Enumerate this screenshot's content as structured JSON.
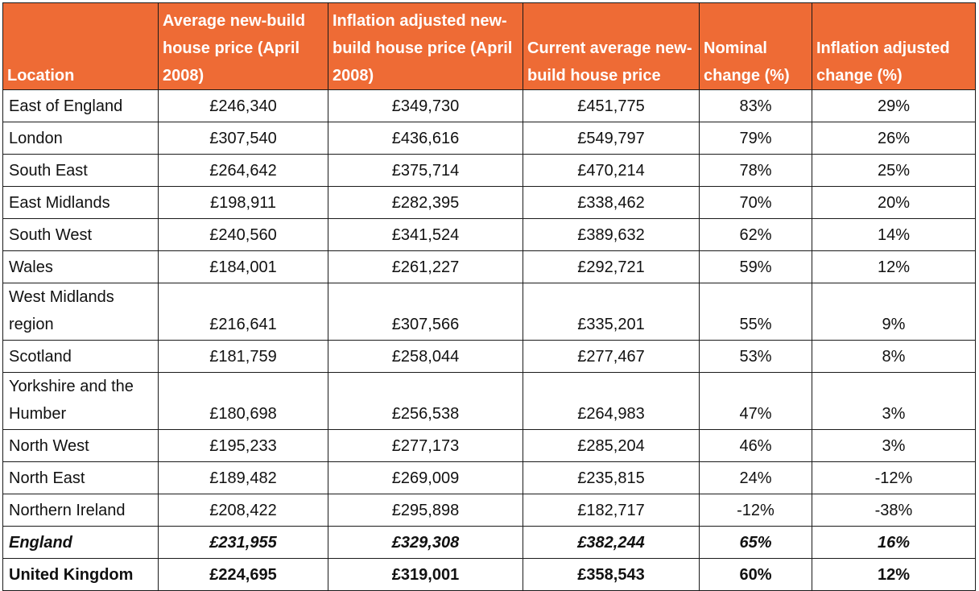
{
  "table": {
    "headers": [
      "Location",
      "Average new-build house price (April 2008)",
      "Inflation adjusted new-build house price (April 2008)",
      "Current average new-build house price",
      "Nominal change (%)",
      "Inflation adjusted change (%)"
    ],
    "rows": [
      [
        "East of England",
        "£246,340",
        "£349,730",
        "£451,775",
        "83%",
        "29%"
      ],
      [
        "London",
        "£307,540",
        "£436,616",
        "£549,797",
        "79%",
        "26%"
      ],
      [
        "South East",
        "£264,642",
        "£375,714",
        "£470,214",
        "78%",
        "25%"
      ],
      [
        "East Midlands",
        "£198,911",
        "£282,395",
        "£338,462",
        "70%",
        "20%"
      ],
      [
        "South West",
        "£240,560",
        "£341,524",
        "£389,632",
        "62%",
        "14%"
      ],
      [
        "Wales",
        "£184,001",
        "£261,227",
        "£292,721",
        "59%",
        "12%"
      ],
      [
        "West Midlands region",
        "£216,641",
        "£307,566",
        "£335,201",
        "55%",
        "9%"
      ],
      [
        "Scotland",
        "£181,759",
        "£258,044",
        "£277,467",
        "53%",
        "8%"
      ],
      [
        "Yorkshire and the Humber",
        "£180,698",
        "£256,538",
        "£264,983",
        "47%",
        "3%"
      ],
      [
        "North West",
        "£195,233",
        "£277,173",
        "£285,204",
        "46%",
        "3%"
      ],
      [
        "North East",
        "£189,482",
        "£269,009",
        "£235,815",
        "24%",
        "-12%"
      ],
      [
        "Northern Ireland",
        "£208,422",
        "£295,898",
        "£182,717",
        "-12%",
        "-38%"
      ]
    ],
    "totals": [
      [
        "England",
        "£231,955",
        "£329,308",
        "£382,244",
        "65%",
        "16%"
      ],
      [
        "United Kingdom",
        "£224,695",
        "£319,001",
        "£358,543",
        "60%",
        "12%"
      ]
    ],
    "header_color": "#ee6b35"
  }
}
